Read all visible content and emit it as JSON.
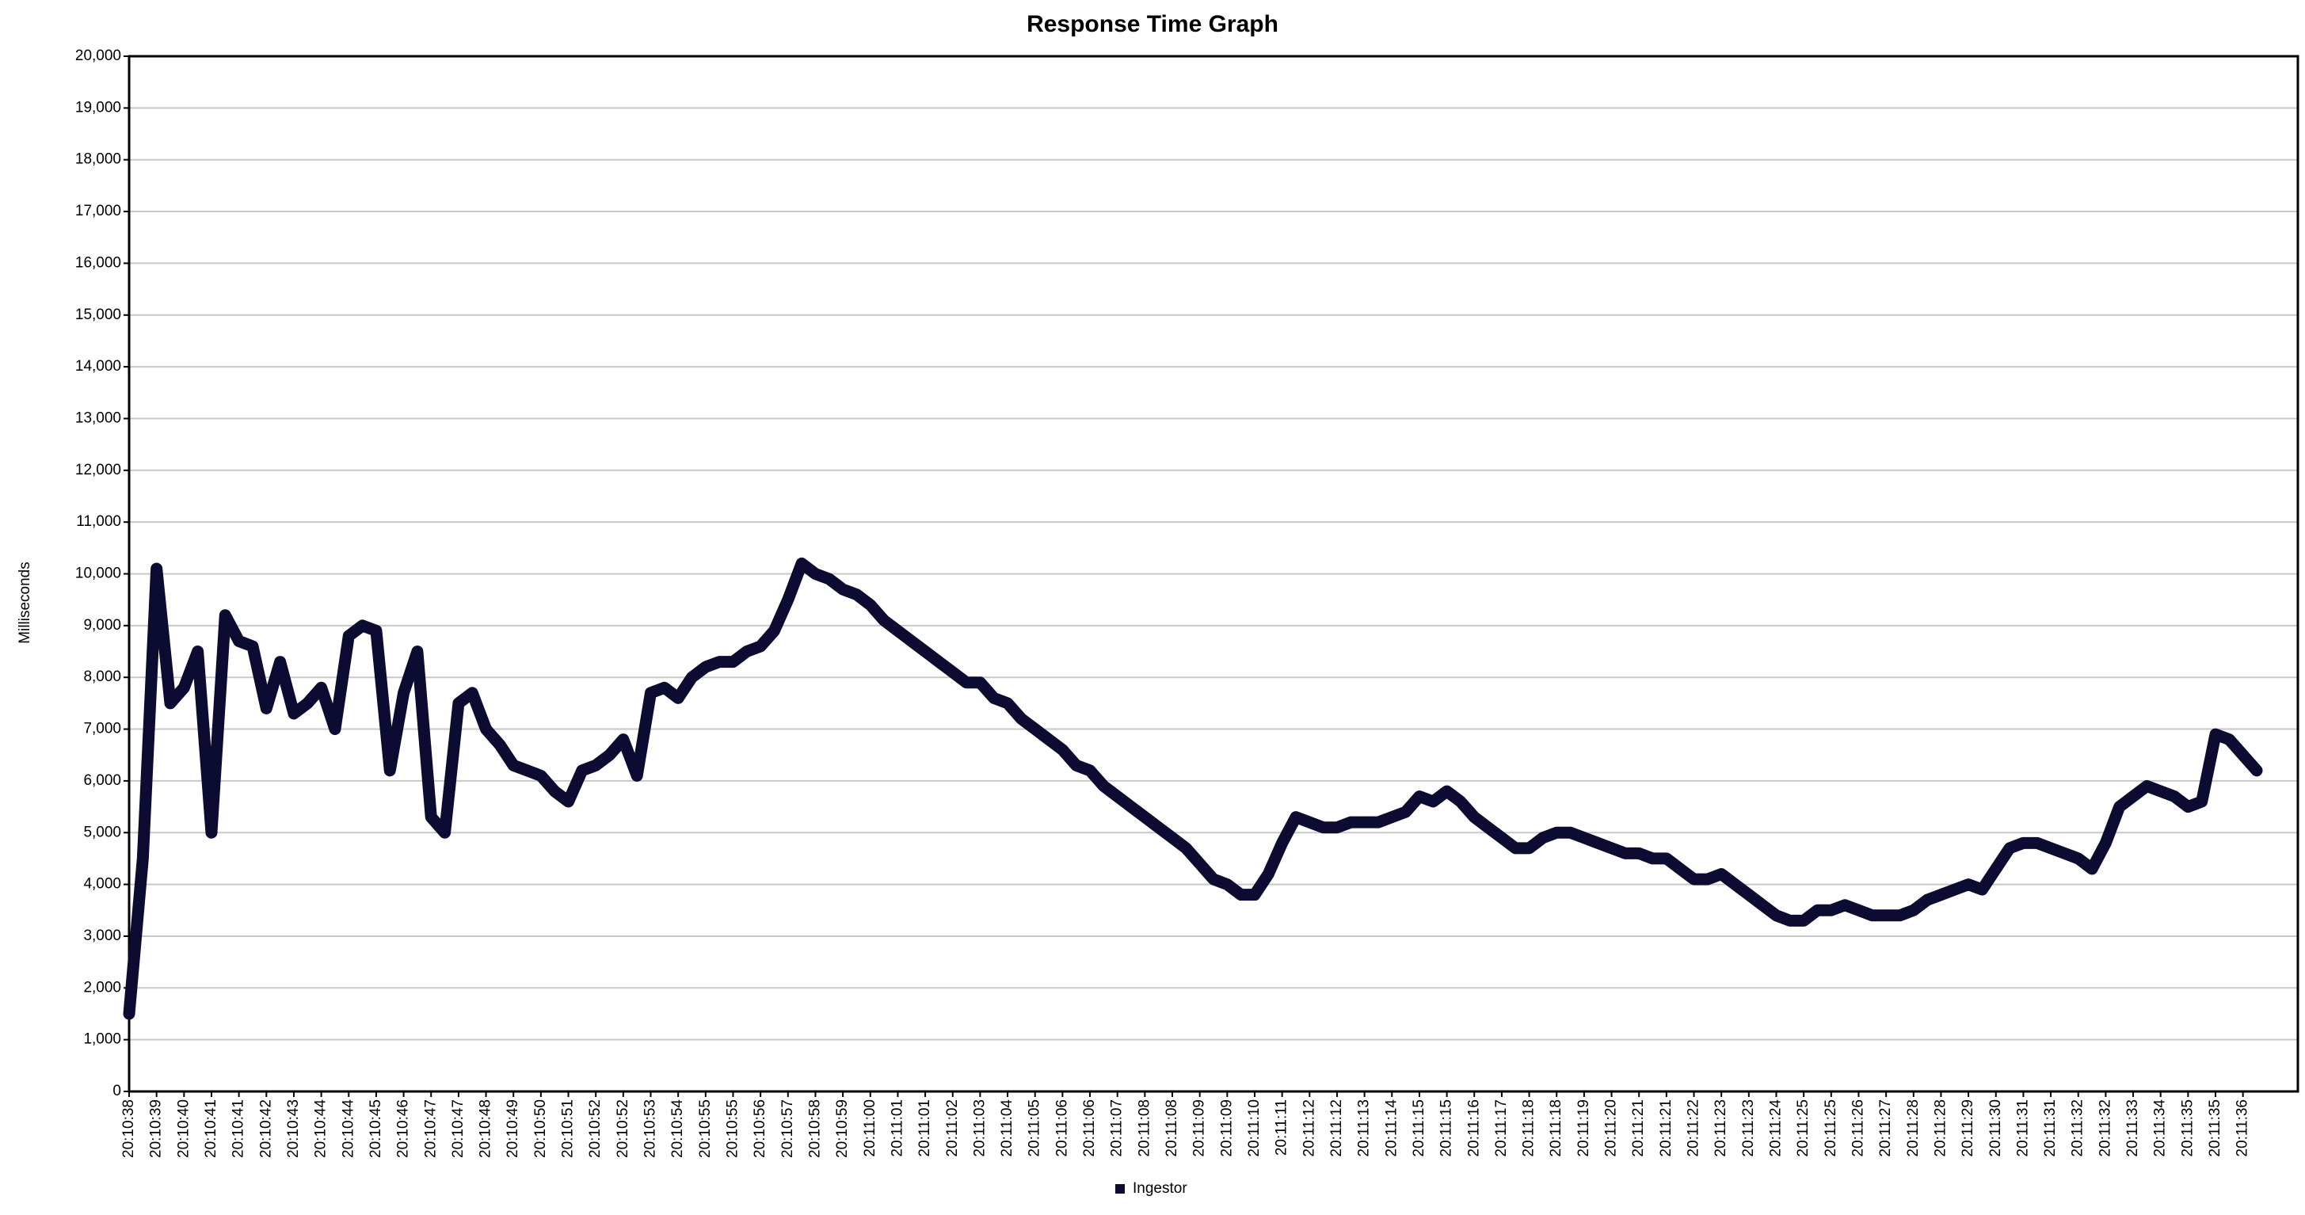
{
  "chart_data": {
    "type": "line",
    "title": "Response Time Graph",
    "y_label": "Milliseconds",
    "categories": [
      "20:10:38",
      null,
      "20:10:39",
      null,
      "20:10:40",
      null,
      "20:10:41",
      null,
      "20:10:41",
      null,
      "20:10:42",
      null,
      "20:10:43",
      null,
      "20:10:44",
      null,
      "20:10:44",
      null,
      "20:10:45",
      null,
      "20:10:46",
      null,
      "20:10:47",
      null,
      "20:10:47",
      null,
      "20:10:48",
      null,
      "20:10:49",
      null,
      "20:10:50",
      null,
      "20:10:51",
      null,
      "20:10:52",
      null,
      "20:10:52",
      null,
      "20:10:53",
      null,
      "20:10:54",
      null,
      "20:10:55",
      null,
      "20:10:55",
      null,
      "20:10:56",
      null,
      "20:10:57",
      null,
      "20:10:58",
      null,
      "20:10:59",
      null,
      "20:11:00",
      null,
      "20:11:01",
      null,
      "20:11:01",
      null,
      "20:11:02",
      null,
      "20:11:03",
      null,
      "20:11:04",
      null,
      "20:11:05",
      null,
      "20:11:06",
      null,
      "20:11:06",
      null,
      "20:11:07",
      null,
      "20:11:08",
      null,
      "20:11:08",
      null,
      "20:11:09",
      null,
      "20:11:09",
      null,
      "20:11:10",
      null,
      "20:11:11",
      null,
      "20:11:12",
      null,
      "20:11:12",
      null,
      "20:11:13",
      null,
      "20:11:14",
      null,
      "20:11:15",
      null,
      "20:11:15",
      null,
      "20:11:16",
      null,
      "20:11:17",
      null,
      "20:11:18",
      null,
      "20:11:18",
      null,
      "20:11:19",
      null,
      "20:11:20",
      null,
      "20:11:21",
      null,
      "20:11:21",
      null,
      "20:11:22",
      null,
      "20:11:23",
      null,
      "20:11:23",
      null,
      "20:11:24",
      null,
      "20:11:25",
      null,
      "20:11:25",
      null,
      "20:11:26",
      null,
      "20:11:27",
      null,
      "20:11:28",
      null,
      "20:11:28",
      null,
      "20:11:29",
      null,
      "20:11:30",
      null,
      "20:11:31",
      null,
      "20:11:31",
      null,
      "20:11:32",
      null,
      "20:11:32",
      null,
      "20:11:33",
      null,
      "20:11:34",
      null,
      "20:11:35",
      null,
      "20:11:35",
      null,
      "20:11:36",
      null
    ],
    "series": [
      {
        "name": "Ingestor",
        "color": "#0c0c33",
        "values": [
          1500,
          4500,
          10100,
          7500,
          7800,
          8500,
          5000,
          9200,
          8700,
          8600,
          7400,
          8300,
          7300,
          7500,
          7800,
          7000,
          8800,
          9000,
          8900,
          6200,
          7700,
          8500,
          5300,
          5000,
          7500,
          7700,
          7000,
          6700,
          6300,
          6200,
          6100,
          5800,
          5600,
          6200,
          6300,
          6500,
          6800,
          6100,
          7700,
          7800,
          7600,
          8000,
          8200,
          8300,
          8300,
          8500,
          8600,
          8900,
          9500,
          10200,
          10000,
          9900,
          9700,
          9600,
          9400,
          9100,
          8900,
          8700,
          8500,
          8300,
          8100,
          7900,
          7900,
          7600,
          7500,
          7200,
          7000,
          6800,
          6600,
          6300,
          6200,
          5900,
          5700,
          5500,
          5300,
          5100,
          4900,
          4700,
          4400,
          4100,
          4000,
          3800,
          3800,
          4200,
          4800,
          5300,
          5200,
          5100,
          5100,
          5200,
          5200,
          5200,
          5300,
          5400,
          5700,
          5600,
          5800,
          5600,
          5300,
          5100,
          4900,
          4700,
          4700,
          4900,
          5000,
          5000,
          4900,
          4800,
          4700,
          4600,
          4600,
          4500,
          4500,
          4300,
          4100,
          4100,
          4200,
          4000,
          3800,
          3600,
          3400,
          3300,
          3300,
          3500,
          3500,
          3600,
          3500,
          3400,
          3400,
          3400,
          3500,
          3700,
          3800,
          3900,
          4000,
          3900,
          4300,
          4700,
          4800,
          4800,
          4700,
          4600,
          4500,
          4300,
          4800,
          5500,
          5700,
          5900,
          5800,
          5700,
          5500,
          5600,
          6900,
          6800,
          6500,
          6200
        ]
      }
    ],
    "ylim": [
      0,
      20000
    ],
    "yticks": [
      0,
      {
        "value": 1000,
        "label": "1,000"
      },
      {
        "value": 2000,
        "label": "2,000"
      },
      {
        "value": 3000,
        "label": "3,000"
      },
      {
        "value": 4000,
        "label": "4,000"
      },
      {
        "value": 5000,
        "label": "5,000"
      },
      {
        "value": 6000,
        "label": "6,000"
      },
      {
        "value": 7000,
        "label": "7,000"
      },
      {
        "value": 8000,
        "label": "8,000"
      },
      {
        "value": 9000,
        "label": "9,000"
      },
      {
        "value": 10000,
        "label": "10,000"
      },
      {
        "value": 11000,
        "label": "11,000"
      },
      {
        "value": 12000,
        "label": "12,000"
      },
      {
        "value": 13000,
        "label": "13,000"
      },
      {
        "value": 14000,
        "label": "14,000"
      },
      {
        "value": 15000,
        "label": "15,000"
      },
      {
        "value": 16000,
        "label": "16,000"
      },
      {
        "value": 17000,
        "label": "17,000"
      },
      {
        "value": 18000,
        "label": "18,000"
      },
      {
        "value": 19000,
        "label": "19,000"
      },
      {
        "value": 20000,
        "label": "20,000"
      }
    ],
    "grid": true,
    "legend": "bottom"
  }
}
